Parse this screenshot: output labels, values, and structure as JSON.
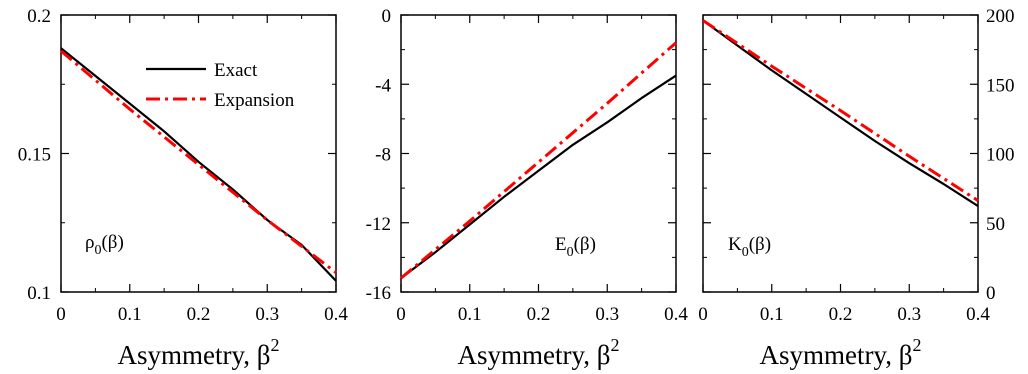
{
  "chart_data": [
    {
      "type": "line",
      "id": "rho",
      "xlabel_main": "Asymmetry, β",
      "xlabel_sup": "2",
      "xlim": [
        0,
        0.4
      ],
      "ylim": [
        0.1,
        0.2
      ],
      "xticks": [
        0,
        0.1,
        0.2,
        0.3,
        0.4
      ],
      "xtick_labels": [
        "0",
        "0.1",
        "0.2",
        "0.3",
        "0.4"
      ],
      "yticks": [
        0.1,
        0.15,
        0.2
      ],
      "ytick_labels": [
        "0.1",
        "0.15",
        "0.2"
      ],
      "annotation": {
        "main": "ρ",
        "sub": "0",
        "rest": "(β)"
      },
      "legend": {
        "placement": "top-center",
        "entries": [
          "Exact",
          "Expansion"
        ]
      },
      "series": [
        {
          "name": "Exact",
          "style": "solid",
          "color": "#000000",
          "x": [
            0,
            0.05,
            0.1,
            0.15,
            0.2,
            0.25,
            0.3,
            0.35,
            0.4
          ],
          "y": [
            0.188,
            0.178,
            0.168,
            0.158,
            0.147,
            0.137,
            0.126,
            0.117,
            0.104
          ]
        },
        {
          "name": "Expansion",
          "style": "dashdot",
          "color": "#ff0000",
          "x": [
            0,
            0.1,
            0.2,
            0.3,
            0.4
          ],
          "y": [
            0.187,
            0.166,
            0.146,
            0.126,
            0.107
          ]
        }
      ]
    },
    {
      "type": "line",
      "id": "energy",
      "xlabel_main": "Asymmetry, β",
      "xlabel_sup": "2",
      "xlim": [
        0,
        0.4
      ],
      "ylim": [
        -16,
        0
      ],
      "xticks": [
        0,
        0.1,
        0.2,
        0.3,
        0.4
      ],
      "xtick_labels": [
        "0",
        "0.1",
        "0.2",
        "0.3",
        "0.4"
      ],
      "yticks": [
        -16,
        -12,
        -8,
        -4,
        0
      ],
      "ytick_labels": [
        "-16",
        "-12",
        "-8",
        "-4",
        "0"
      ],
      "annotation": {
        "main": "E",
        "sub": "0",
        "rest": "(β)"
      },
      "series": [
        {
          "name": "Exact",
          "style": "solid",
          "color": "#000000",
          "x": [
            0,
            0.05,
            0.1,
            0.15,
            0.2,
            0.25,
            0.3,
            0.35,
            0.4
          ],
          "y": [
            -15.2,
            -13.7,
            -12.1,
            -10.5,
            -9.0,
            -7.5,
            -6.2,
            -4.8,
            -3.5
          ]
        },
        {
          "name": "Expansion",
          "style": "dashdot",
          "color": "#ff0000",
          "x": [
            0,
            0.1,
            0.2,
            0.3,
            0.4
          ],
          "y": [
            -15.2,
            -11.9,
            -8.5,
            -5.1,
            -1.6
          ]
        }
      ]
    },
    {
      "type": "line",
      "id": "incomp",
      "xlabel_main": "Asymmetry, β",
      "xlabel_sup": "2",
      "xlim": [
        0,
        0.4
      ],
      "ylim": [
        0,
        200
      ],
      "y_axis_side": "right",
      "xticks": [
        0,
        0.1,
        0.2,
        0.3,
        0.4
      ],
      "xtick_labels": [
        "0",
        "0.1",
        "0.2",
        "0.3",
        "0.4"
      ],
      "yticks": [
        0,
        50,
        100,
        150,
        200
      ],
      "ytick_labels": [
        "0",
        "50",
        "100",
        "150",
        "200"
      ],
      "annotation": {
        "main": "K",
        "sub": "0",
        "rest": "(β)"
      },
      "series": [
        {
          "name": "Exact",
          "style": "solid",
          "color": "#000000",
          "x": [
            0,
            0.05,
            0.1,
            0.15,
            0.2,
            0.25,
            0.3,
            0.35,
            0.4
          ],
          "y": [
            196,
            178,
            160,
            143,
            126,
            109,
            93,
            78,
            62
          ]
        },
        {
          "name": "Expansion",
          "style": "dashdot",
          "color": "#ff0000",
          "x": [
            0,
            0.1,
            0.2,
            0.3,
            0.4
          ],
          "y": [
            196,
            163,
            131,
            98,
            66
          ]
        }
      ]
    }
  ]
}
